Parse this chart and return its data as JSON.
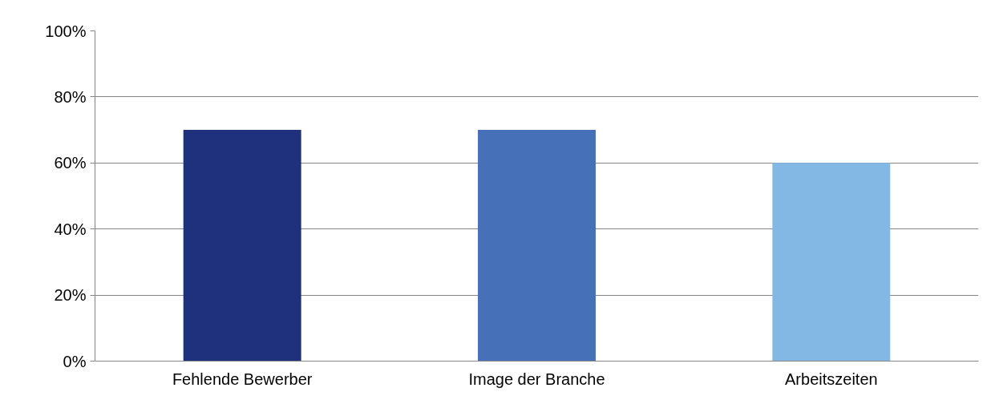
{
  "chart_data": {
    "type": "bar",
    "categories": [
      "Fehlende Bewerber",
      "Image der Branche",
      "Arbeitszeiten"
    ],
    "values": [
      70,
      70,
      60
    ],
    "colors": [
      "#1f317c",
      "#4670b8",
      "#84b8e4"
    ],
    "ylim": [
      0,
      100
    ],
    "yticks": [
      {
        "value": 0,
        "label": "0%"
      },
      {
        "value": 20,
        "label": "20%"
      },
      {
        "value": 40,
        "label": "40%"
      },
      {
        "value": 60,
        "label": "60%"
      },
      {
        "value": 80,
        "label": "80%"
      },
      {
        "value": 100,
        "label": "100%"
      }
    ],
    "grid": "y"
  }
}
